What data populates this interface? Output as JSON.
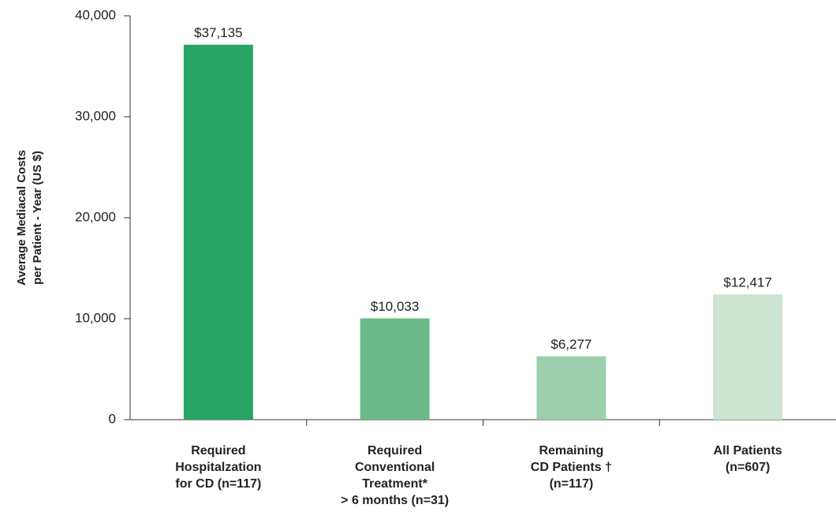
{
  "chart_data": {
    "type": "bar",
    "y_label": "Average Mediacal Costs\nper Patient - Year (US $)",
    "categories": [
      "Required\nHospitalzation\nfor CD (n=117)",
      "Required\nConventional\nTreatment*\n> 6 months (n=31)",
      "Remaining\nCD Patients †\n(n=117)",
      "All Patients\n(n=607)"
    ],
    "values": [
      37135,
      10033,
      6277,
      12417
    ],
    "value_labels": [
      "$37,135",
      "$10,033",
      "$6,277",
      "$12,417"
    ],
    "colors": [
      "#27a463",
      "#6aba8a",
      "#9dcfac",
      "#cce5d3"
    ],
    "ylim": [
      0,
      40000
    ],
    "yticks": [
      0,
      {
        "value": 10000,
        "label": "10,000"
      },
      {
        "value": 20000,
        "label": "20,000"
      },
      {
        "value": 30000,
        "label": "30,000"
      },
      {
        "value": 40000,
        "label": "40,000"
      }
    ],
    "grid": false
  }
}
